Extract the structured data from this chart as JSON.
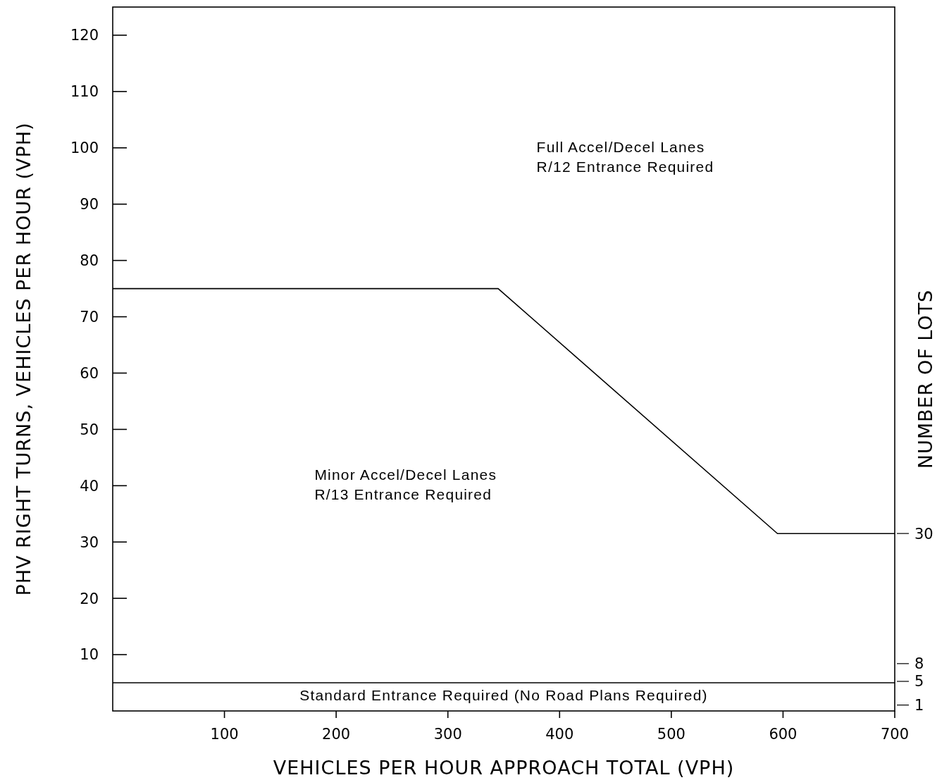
{
  "chart_data": {
    "type": "line",
    "xlabel": "VEHICLES PER HOUR APPROACH TOTAL (VPH)",
    "ylabel": "PHV RIGHT TURNS, VEHICLES PER HOUR (VPH)",
    "y2label": "NUMBER OF LOTS",
    "xlim": [
      0,
      700
    ],
    "xticks": [
      100,
      200,
      300,
      400,
      500,
      600,
      700
    ],
    "ylim": [
      0,
      125
    ],
    "yticks": [
      10,
      20,
      30,
      40,
      50,
      60,
      70,
      80,
      90,
      100,
      110,
      120
    ],
    "y2lim": [
      0,
      119
    ],
    "y2ticks": [
      30,
      8,
      5,
      1
    ],
    "series": [
      {
        "color": "#000000",
        "x": [
          0,
          345,
          595,
          700
        ],
        "values": [
          75,
          75,
          31.5,
          31.5
        ]
      }
    ],
    "ref_lines": [
      {
        "axis": "y",
        "value": 5,
        "color": "#000000"
      }
    ],
    "annotations": [
      "Full Accel/Decel Lanes\nR/12 Entrance Required",
      "Minor Accel/Decel Lanes\nR/13 Entrance Required",
      "Standard Entrance Required (No Road Plans Required)"
    ],
    "grid": false,
    "marker": "none",
    "line_style": "solid"
  }
}
